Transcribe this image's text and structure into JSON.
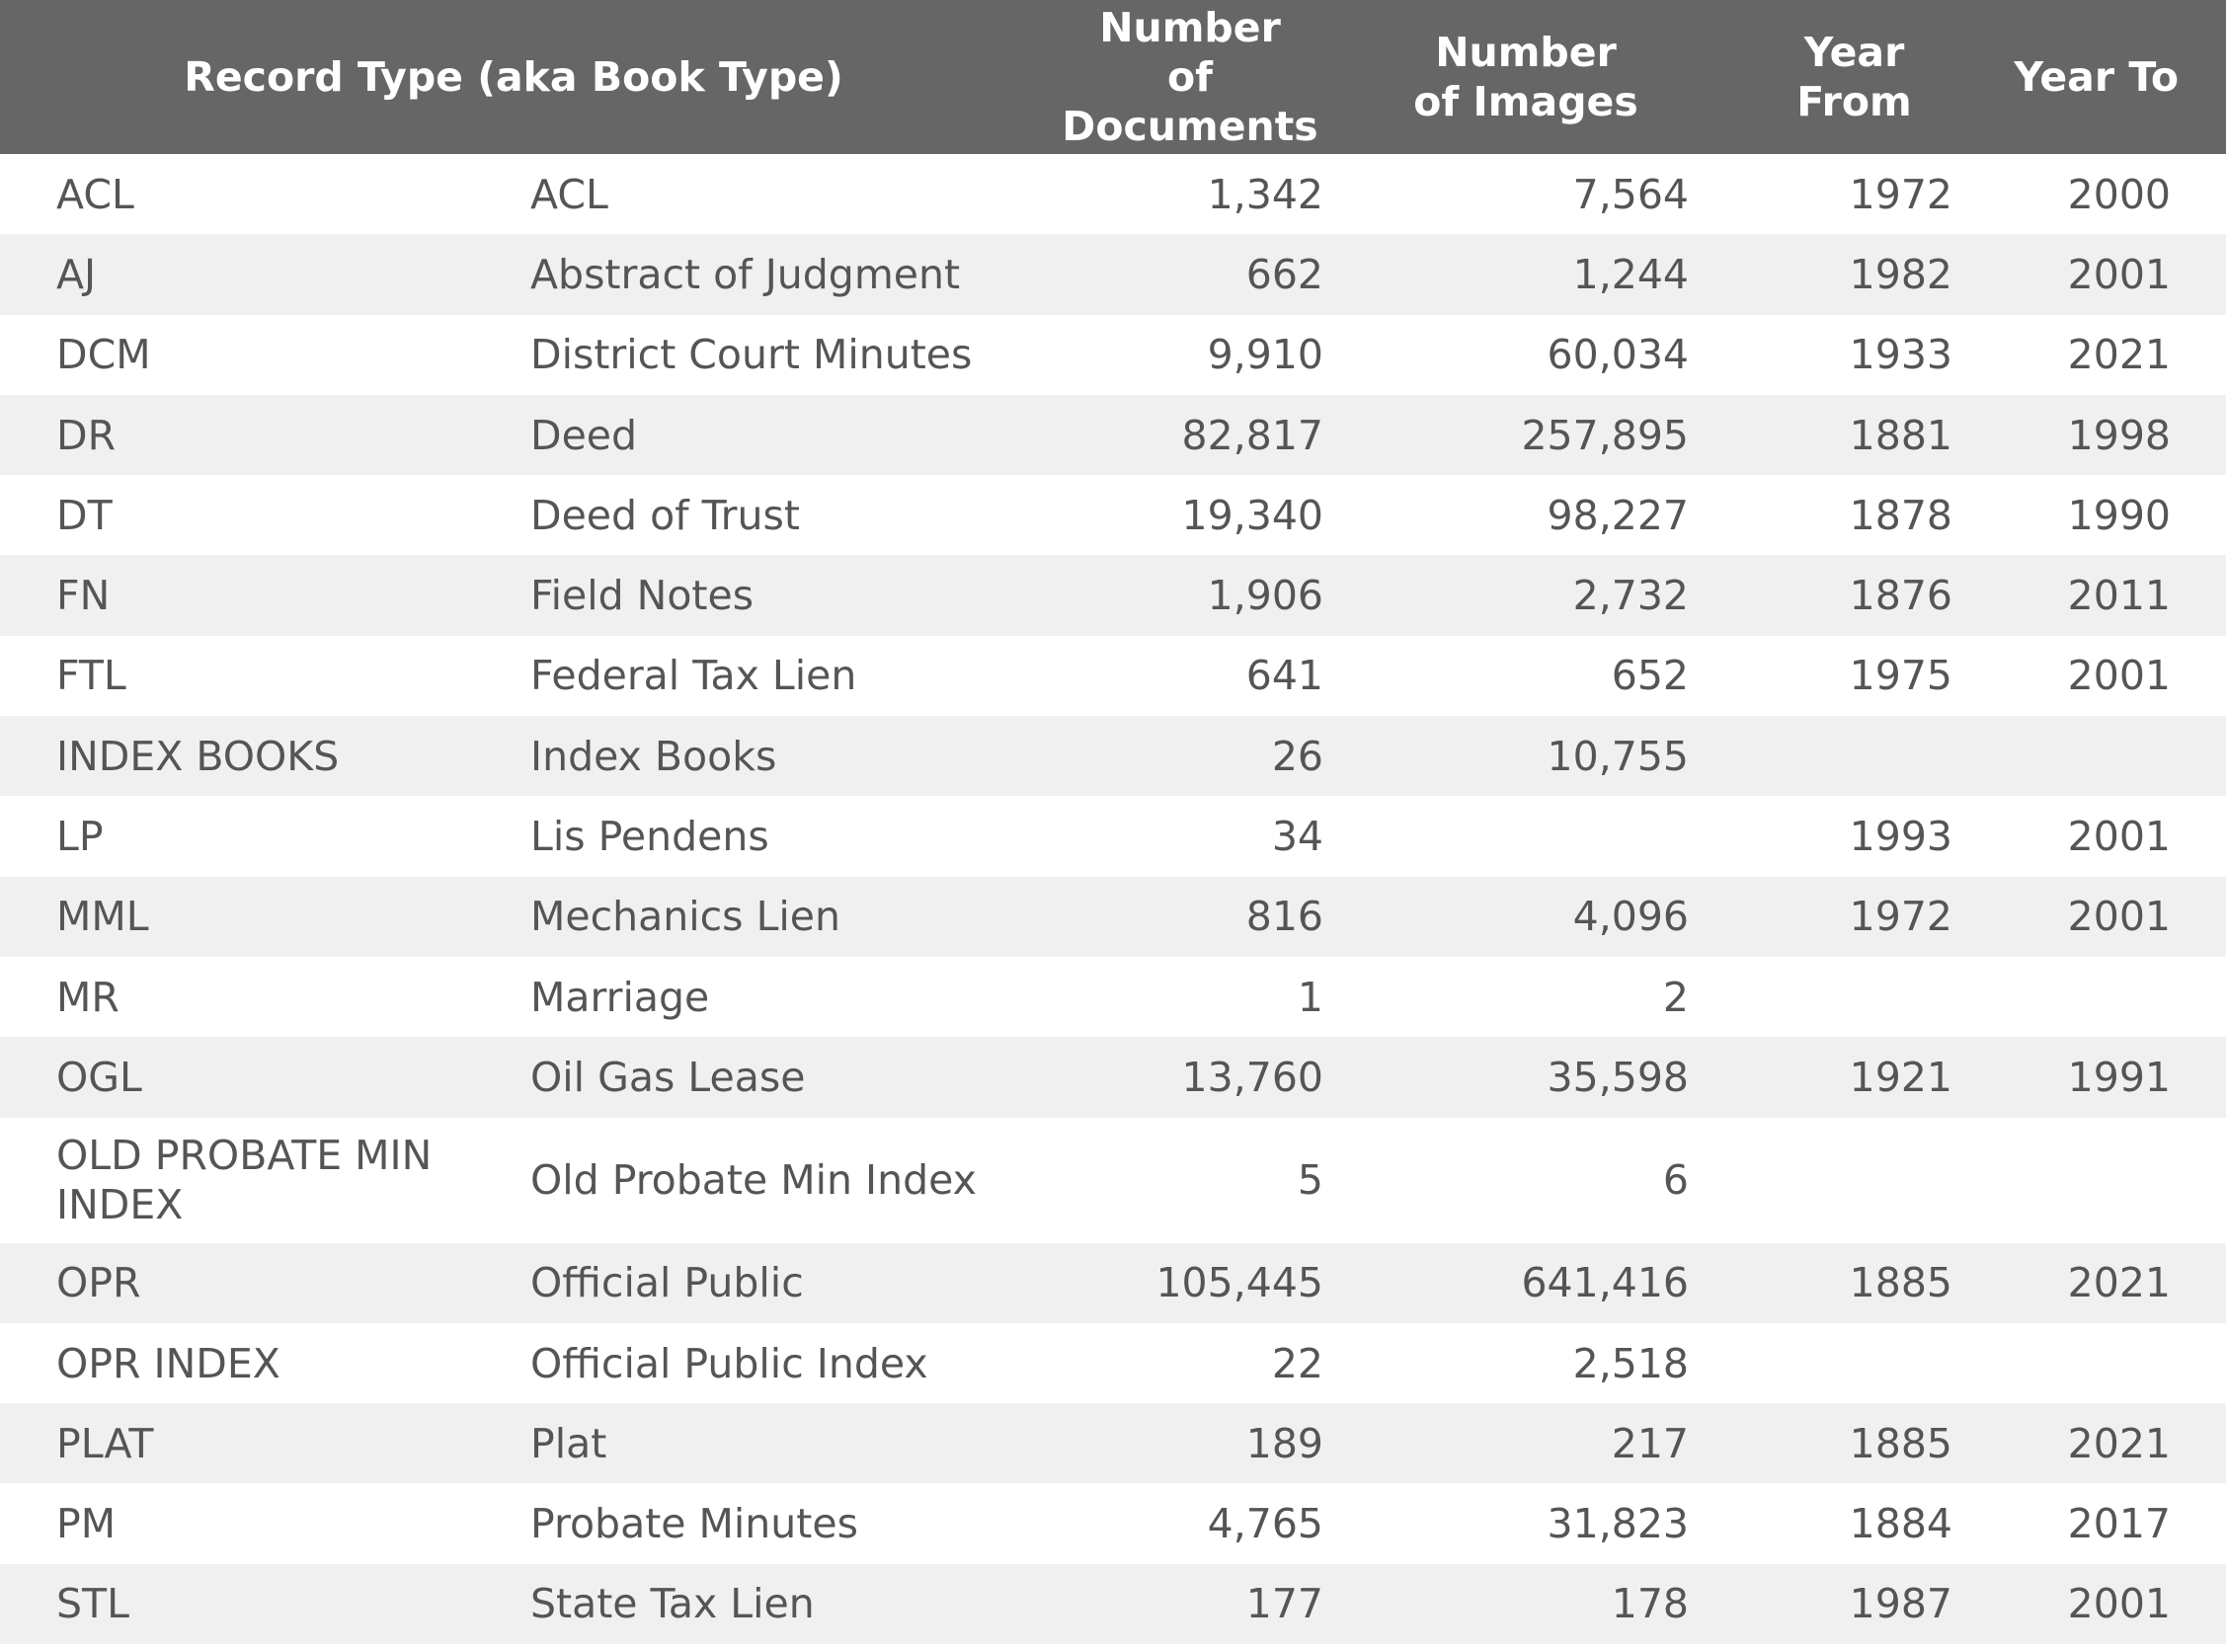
{
  "header": {
    "record_type": "Record Type (aka Book Type)",
    "documents_line1": "Number",
    "documents_line2": "of Documents",
    "images_line1": "Number",
    "images_line2": "of Images",
    "year_from_line1": "Year",
    "year_from_line2": "From",
    "year_to": "Year To"
  },
  "rows": [
    {
      "code": "ACL",
      "description": "ACL",
      "documents": "1,342",
      "images": "7,564",
      "year_from": "1972",
      "year_to": "2000"
    },
    {
      "code": "AJ",
      "description": "Abstract of Judgment",
      "documents": "662",
      "images": "1,244",
      "year_from": "1982",
      "year_to": "2001"
    },
    {
      "code": "DCM",
      "description": "District Court Minutes",
      "documents": "9,910",
      "images": "60,034",
      "year_from": "1933",
      "year_to": "2021"
    },
    {
      "code": "DR",
      "description": "Deed",
      "documents": "82,817",
      "images": "257,895",
      "year_from": "1881",
      "year_to": "1998"
    },
    {
      "code": "DT",
      "description": "Deed of Trust",
      "documents": "19,340",
      "images": "98,227",
      "year_from": "1878",
      "year_to": "1990"
    },
    {
      "code": "FN",
      "description": "Field Notes",
      "documents": "1,906",
      "images": "2,732",
      "year_from": "1876",
      "year_to": "2011"
    },
    {
      "code": "FTL",
      "description": "Federal Tax Lien",
      "documents": "641",
      "images": "652",
      "year_from": "1975",
      "year_to": "2001"
    },
    {
      "code": "INDEX BOOKS",
      "description": "Index Books",
      "documents": "26",
      "images": "10,755",
      "year_from": "",
      "year_to": ""
    },
    {
      "code": "LP",
      "description": "Lis Pendens",
      "documents": "34",
      "images": "",
      "year_from": "1993",
      "year_to": "2001"
    },
    {
      "code": "MML",
      "description": "Mechanics Lien",
      "documents": "816",
      "images": "4,096",
      "year_from": "1972",
      "year_to": "2001"
    },
    {
      "code": "MR",
      "description": "Marriage",
      "documents": "1",
      "images": "2",
      "year_from": "",
      "year_to": ""
    },
    {
      "code": "OGL",
      "description": "Oil Gas Lease",
      "documents": "13,760",
      "images": "35,598",
      "year_from": "1921",
      "year_to": "1991"
    },
    {
      "code": "OLD PROBATE MIN INDEX",
      "description": "Old Probate Min Index",
      "documents": "5",
      "images": "6",
      "year_from": "",
      "year_to": ""
    },
    {
      "code": "OPR",
      "description": "Official Public",
      "documents": "105,445",
      "images": "641,416",
      "year_from": "1885",
      "year_to": "2021"
    },
    {
      "code": "OPR INDEX",
      "description": "Official Public Index",
      "documents": "22",
      "images": "2,518",
      "year_from": "",
      "year_to": ""
    },
    {
      "code": "PLAT",
      "description": "Plat",
      "documents": "189",
      "images": "217",
      "year_from": "1885",
      "year_to": "2021"
    },
    {
      "code": "PM",
      "description": "Probate Minutes",
      "documents": "4,765",
      "images": "31,823",
      "year_from": "1884",
      "year_to": "2017"
    },
    {
      "code": "STL",
      "description": "State Tax Lien",
      "documents": "177",
      "images": "178",
      "year_from": "1987",
      "year_to": "2001"
    }
  ]
}
